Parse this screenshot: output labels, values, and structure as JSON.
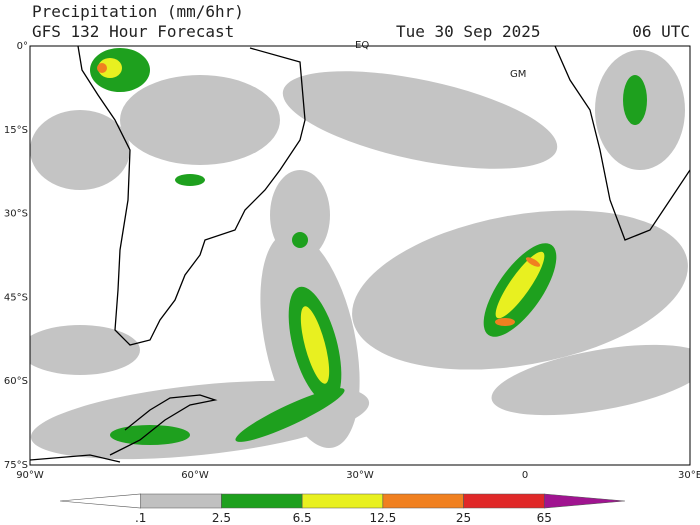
{
  "header": {
    "title": "Precipitation (mm/6hr)",
    "subtitle": "GFS 132 Hour Forecast",
    "date": "Tue 30 Sep 2025",
    "time": "06 UTC"
  },
  "map": {
    "labels": [
      "EQ",
      "GM"
    ],
    "lat_labels": [
      "0°",
      "15°S",
      "30°S",
      "45°S",
      "60°S",
      "75°S"
    ],
    "lon_labels": [
      "90°W",
      "60°W",
      "30°W",
      "0",
      "30°E"
    ]
  },
  "colorbar": {
    "ticks": [
      {
        "value": 0.1,
        "label": ".1"
      },
      2.5,
      6.5,
      12.5,
      25,
      65
    ],
    "colors": [
      "#ffffff",
      "#c0c0c0",
      "#1ea01e",
      "#e8f020",
      "#f08020",
      "#e02828",
      "#a01490"
    ]
  }
}
